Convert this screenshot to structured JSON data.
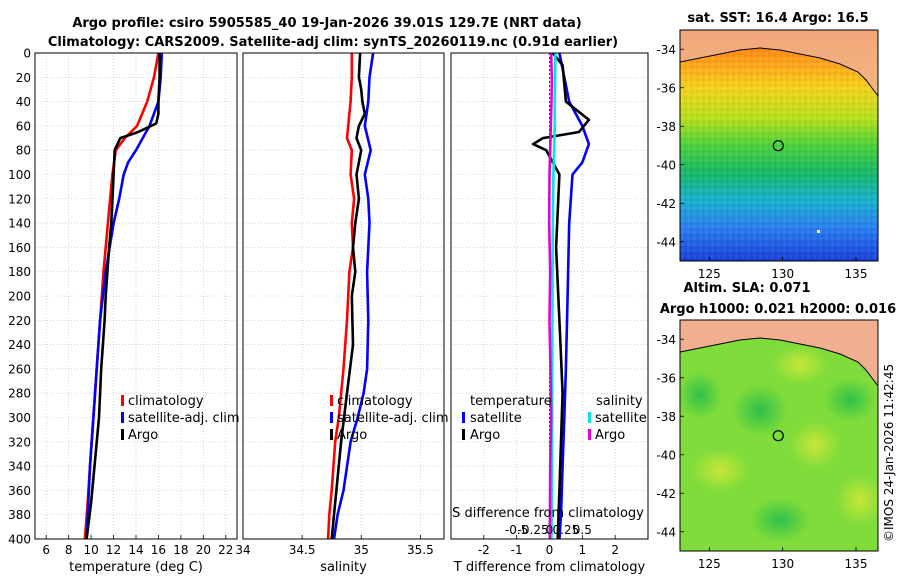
{
  "header": {
    "title_line1": "Argo profile: csiro 5905585_40 19-Jan-2026 39.01S 129.7E (NRT data)",
    "title_line2": "Climatology: CARS2009. Satellite-adj clim: synTS_20260119.nc (0.91d earlier)"
  },
  "colors": {
    "climatology": "#ff0000",
    "satellite": "#0000ff",
    "argo": "#000000",
    "sal_satellite": "#00e5e5",
    "sal_argo": "#e000e0"
  },
  "chart_data": [
    {
      "type": "line",
      "xlabel": "temperature (deg C)",
      "xlim": [
        5,
        23
      ],
      "xticks": [
        6,
        8,
        10,
        12,
        14,
        16,
        18,
        20,
        22
      ],
      "ylim": [
        0,
        400
      ],
      "yticks": [
        0,
        20,
        40,
        60,
        80,
        100,
        120,
        140,
        160,
        180,
        200,
        220,
        240,
        260,
        280,
        300,
        320,
        340,
        360,
        380,
        400
      ],
      "legend": [
        "climatology",
        "satellite-adj. clim",
        "Argo"
      ],
      "series": [
        {
          "name": "climatology",
          "color": "#ff0000",
          "x": [
            16.0,
            15.6,
            15.0,
            14.1,
            13.0,
            12.2,
            11.9,
            11.5,
            11.1,
            10.8,
            10.5,
            10.2,
            9.9,
            9.7,
            9.45
          ],
          "y": [
            0,
            20,
            40,
            60,
            70,
            80,
            100,
            140,
            180,
            220,
            260,
            300,
            340,
            370,
            400
          ]
        },
        {
          "name": "satellite-adj. clim",
          "color": "#0000ff",
          "x": [
            16.3,
            16.2,
            16.0,
            15.2,
            14.6,
            14.0,
            13.3,
            12.9,
            12.5,
            12.0,
            11.3,
            10.8,
            10.5,
            10.2,
            9.9,
            9.6
          ],
          "y": [
            0,
            20,
            40,
            60,
            70,
            80,
            90,
            100,
            120,
            140,
            180,
            220,
            260,
            300,
            340,
            400
          ]
        },
        {
          "name": "Argo",
          "color": "#000000",
          "x": [
            16.1,
            16.1,
            16.0,
            16.0,
            15.8,
            14.2,
            12.6,
            12.1,
            12.0,
            11.8,
            11.6,
            11.3,
            11.2,
            10.9,
            10.7,
            10.3,
            10.0,
            9.6
          ],
          "y": [
            0,
            20,
            40,
            50,
            58,
            65,
            70,
            80,
            100,
            140,
            160,
            200,
            220,
            260,
            300,
            340,
            370,
            400
          ]
        }
      ]
    },
    {
      "type": "line",
      "xlabel": "salinity",
      "xlim": [
        34,
        35.7
      ],
      "xticks": [
        34,
        34.5,
        35,
        35.5
      ],
      "ylim": [
        0,
        400
      ],
      "legend": [
        "climatology",
        "satellite-adj. clim",
        "Argo"
      ],
      "series": [
        {
          "name": "climatology",
          "color": "#ff0000",
          "x": [
            34.92,
            34.92,
            34.91,
            34.89,
            34.88,
            34.92,
            34.91,
            34.94,
            34.92,
            34.93,
            34.9,
            34.88,
            34.85,
            34.81,
            34.78,
            34.75,
            34.73,
            34.72
          ],
          "y": [
            0,
            20,
            40,
            60,
            70,
            80,
            100,
            120,
            140,
            160,
            180,
            220,
            260,
            300,
            320,
            360,
            380,
            400
          ]
        },
        {
          "name": "satellite-adj. clim",
          "color": "#0000ff",
          "x": [
            35.1,
            35.07,
            35.06,
            35.03,
            35.08,
            35.03,
            35.06,
            35.07,
            35.05,
            35.06,
            35.05,
            35.02,
            34.97,
            34.91,
            34.85,
            34.8,
            34.77
          ],
          "y": [
            0,
            20,
            40,
            60,
            80,
            100,
            120,
            140,
            180,
            220,
            260,
            280,
            300,
            320,
            360,
            380,
            400
          ]
        },
        {
          "name": "Argo",
          "color": "#000000",
          "x": [
            34.99,
            34.98,
            35.0,
            35.01,
            35.03,
            34.98,
            34.96,
            35.0,
            34.96,
            34.98,
            34.95,
            34.93,
            34.95,
            34.92,
            34.93,
            34.88,
            34.83,
            34.79,
            34.77,
            34.75
          ],
          "y": [
            0,
            20,
            30,
            40,
            50,
            60,
            70,
            80,
            100,
            120,
            140,
            160,
            180,
            200,
            240,
            280,
            320,
            360,
            380,
            400
          ]
        }
      ]
    },
    {
      "type": "line",
      "xlabel": "T difference from climatology",
      "xlabel_top": "S difference from climatology",
      "xlim": [
        -3,
        3
      ],
      "xticks": [
        -2,
        -1,
        0,
        1,
        2
      ],
      "xtick_labels_top": [
        "-0.5",
        "-0.25",
        "0",
        "0.25",
        "0.5"
      ],
      "ylim": [
        0,
        400
      ],
      "legend_temperature": {
        "title": "temperature",
        "entries": [
          "satellite",
          "Argo"
        ]
      },
      "legend_salinity": {
        "title": "salinity",
        "entries": [
          "satellite",
          "Argo"
        ]
      },
      "series": [
        {
          "name": "T satellite",
          "color": "#0000ff",
          "x": [
            0.3,
            0.6,
            1.0,
            1.2,
            1.0,
            0.7,
            0.6,
            0.55,
            0.5,
            0.45,
            0.4,
            0.35,
            0.3
          ],
          "y": [
            0,
            40,
            60,
            75,
            90,
            100,
            140,
            200,
            260,
            300,
            340,
            380,
            400
          ]
        },
        {
          "name": "T Argo",
          "color": "#000000",
          "x": [
            0.1,
            0.4,
            0.5,
            1.2,
            0.9,
            -0.2,
            -0.5,
            -0.1,
            0.3,
            0.2,
            0.3,
            0.4,
            0.35,
            0.3,
            0.25
          ],
          "y": [
            0,
            10,
            40,
            55,
            65,
            70,
            75,
            80,
            100,
            160,
            220,
            280,
            320,
            360,
            400
          ]
        },
        {
          "name": "S satellite",
          "color": "#00e5e5",
          "x": [
            0.18,
            0.17,
            0.16,
            0.16,
            0.14,
            0.12,
            0.1,
            0.09,
            0.08,
            0.06
          ],
          "y": [
            0,
            20,
            40,
            60,
            80,
            100,
            140,
            200,
            300,
            400
          ]
        },
        {
          "name": "S Argo",
          "color": "#e000e0",
          "x": [
            0.05,
            0.07,
            0.06,
            0.04,
            0.02,
            0.0,
            -0.01,
            0.02,
            0.0,
            0.03,
            0.05,
            0.02,
            0.01
          ],
          "y": [
            0,
            20,
            40,
            60,
            80,
            100,
            140,
            180,
            220,
            260,
            300,
            340,
            400
          ]
        }
      ]
    }
  ],
  "maps": [
    {
      "title": "sat. SST: 16.4 Argo: 16.5",
      "xlim": [
        123,
        136.5
      ],
      "ylim": [
        -45,
        -33
      ],
      "xticks": [
        125,
        130,
        135
      ],
      "yticks": [
        -34,
        -36,
        -38,
        -40,
        -42,
        -44
      ],
      "marker": {
        "lon": 129.7,
        "lat": -39.01
      }
    },
    {
      "title_line1": "Altim. SLA: 0.071",
      "title_line2": "Argo h1000: 0.021 h2000: 0.016",
      "xlim": [
        123,
        136.5
      ],
      "ylim": [
        -45,
        -33
      ],
      "xticks": [
        125,
        130,
        135
      ],
      "yticks": [
        -34,
        -36,
        -38,
        -40,
        -42,
        -44
      ],
      "marker": {
        "lon": 129.7,
        "lat": -39.01
      }
    }
  ],
  "credit": "©IMOS 24-Jan-2026 11:42:45"
}
